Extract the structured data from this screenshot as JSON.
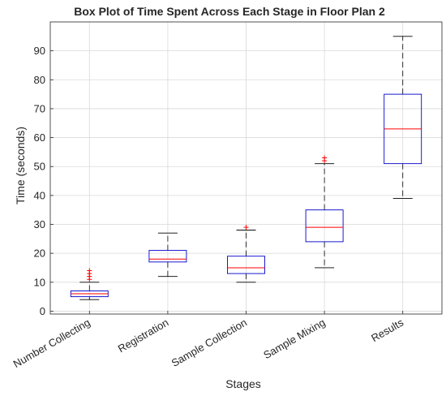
{
  "chart_data": {
    "type": "box",
    "title": "Box Plot of Time Spent Across Each Stage in Floor Plan 2",
    "xlabel": "Stages",
    "ylabel": "Time (seconds)",
    "ylim": [
      -1,
      100
    ],
    "yticks": [
      0,
      10,
      20,
      30,
      40,
      50,
      60,
      70,
      80,
      90
    ],
    "grid": true,
    "categories": [
      "Number Collecting",
      "Registration",
      "Sample Collection",
      "Sample Mixing",
      "Results"
    ],
    "boxes": [
      {
        "category": "Number Collecting",
        "whisker_low": 4,
        "q1": 5,
        "median": 6,
        "q3": 7,
        "whisker_high": 10,
        "outliers": [
          11,
          12,
          13,
          14
        ]
      },
      {
        "category": "Registration",
        "whisker_low": 12,
        "q1": 17,
        "median": 18,
        "q3": 21,
        "whisker_high": 27,
        "outliers": []
      },
      {
        "category": "Sample Collection",
        "whisker_low": 10,
        "q1": 13,
        "median": 15,
        "q3": 19,
        "whisker_high": 28,
        "outliers": [
          29
        ]
      },
      {
        "category": "Sample Mixing",
        "whisker_low": 15,
        "q1": 24,
        "median": 29,
        "q3": 35,
        "whisker_high": 51,
        "outliers": [
          52,
          53
        ]
      },
      {
        "category": "Results",
        "whisker_low": 39,
        "q1": 51,
        "median": 63,
        "q3": 75,
        "whisker_high": 95,
        "outliers": []
      }
    ],
    "colors": {
      "box": "#0000cc",
      "median": "#ff0000",
      "whisker": "#000000",
      "outlier": "#ff0000",
      "grid": "#d9d9d9"
    }
  }
}
